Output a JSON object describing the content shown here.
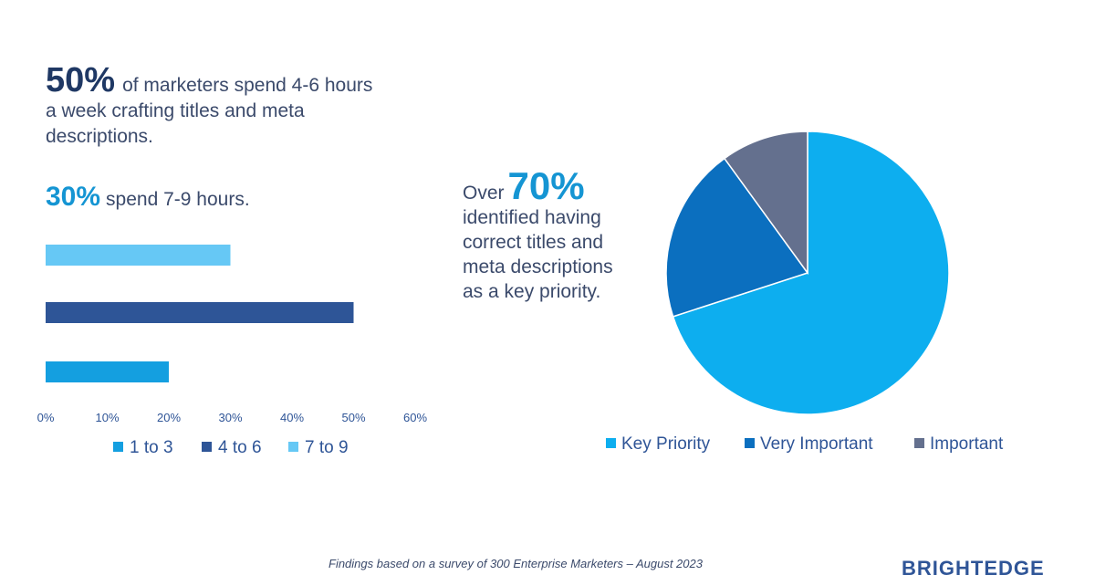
{
  "headline1": {
    "big": "50%",
    "text": "of marketers spend 4-6 hours a week crafting titles and meta descriptions."
  },
  "headline2": {
    "big": "30%",
    "text": "spend 7-9 hours."
  },
  "headline3": {
    "lead": "Over",
    "big": "70%",
    "text": "identified having correct titles and meta descriptions as a key priority."
  },
  "footer": "Findings based on a survey of 300 Enterprise Marketers – August 2023",
  "logo": "BRIGHTEDGE",
  "chart_data": [
    {
      "type": "bar",
      "orientation": "horizontal",
      "categories": [
        "7 to 9",
        "4 to 6",
        "1 to 3"
      ],
      "values": [
        30,
        50,
        20
      ],
      "colors": [
        "#66c8f5",
        "#2e5597",
        "#149fe0"
      ],
      "xlim": [
        0,
        60
      ],
      "xticks": [
        "0%",
        "10%",
        "20%",
        "30%",
        "40%",
        "50%",
        "60%"
      ],
      "legend": [
        {
          "label": "1 to 3",
          "color": "#149fe0"
        },
        {
          "label": "4 to 6",
          "color": "#2e5597"
        },
        {
          "label": "7 to 9",
          "color": "#66c8f5"
        }
      ],
      "legend_position": "bottom"
    },
    {
      "type": "pie",
      "labels": [
        "Key Priority",
        "Very Important",
        "Important"
      ],
      "values": [
        70,
        20,
        10
      ],
      "colors": [
        "#0daeef",
        "#0b6fbf",
        "#64708e"
      ],
      "legend_position": "bottom"
    }
  ]
}
